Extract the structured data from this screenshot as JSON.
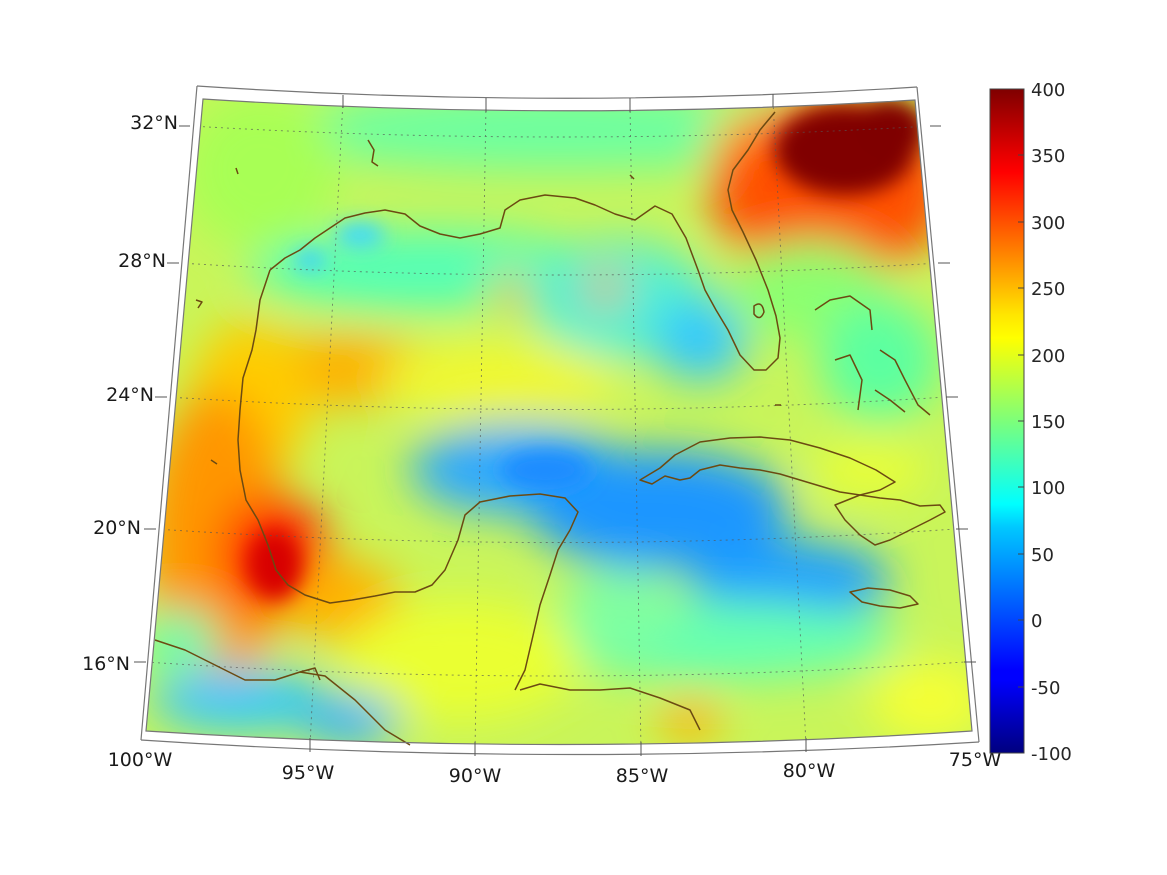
{
  "map": {
    "lon_labels": [
      "100°W",
      "95°W",
      "90°W",
      "85°W",
      "80°W",
      "75°W"
    ],
    "lat_labels": [
      "16°N",
      "20°N",
      "24°N",
      "28°N",
      "32°N"
    ],
    "colors": {
      "coastline": "#6b4a12",
      "gridline": "#555555",
      "frame": "#777777"
    },
    "colorbar": {
      "ticks": [
        "400",
        "350",
        "300",
        "250",
        "200",
        "150",
        "100",
        "50",
        "0",
        "-50",
        "-100"
      ],
      "range": [
        -100,
        400
      ],
      "colormap": "jet"
    },
    "hotspots": [
      {
        "name": "north-atlantic-max",
        "value": 400
      },
      {
        "name": "bay-of-campeche-max",
        "value": 330
      },
      {
        "name": "caribbean-min",
        "value": 60
      }
    ]
  }
}
